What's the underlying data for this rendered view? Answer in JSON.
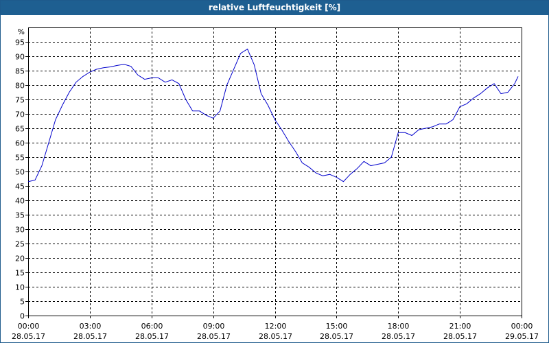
{
  "chart_data": {
    "type": "line",
    "title": "relative Luftfeuchtigkeit [%]",
    "ylabel": "%",
    "ylim": [
      0,
      100
    ],
    "yticks": [
      0,
      5,
      10,
      15,
      20,
      25,
      30,
      35,
      40,
      45,
      50,
      55,
      60,
      65,
      70,
      75,
      80,
      85,
      90,
      95
    ],
    "xlim": [
      "28.05.17 00:00",
      "29.05.17 00:00"
    ],
    "xticks": [
      {
        "time": "00:00",
        "date": "28.05.17"
      },
      {
        "time": "03:00",
        "date": "28.05.17"
      },
      {
        "time": "06:00",
        "date": "28.05.17"
      },
      {
        "time": "09:00",
        "date": "28.05.17"
      },
      {
        "time": "12:00",
        "date": "28.05.17"
      },
      {
        "time": "15:00",
        "date": "28.05.17"
      },
      {
        "time": "18:00",
        "date": "28.05.17"
      },
      {
        "time": "21:00",
        "date": "28.05.17"
      },
      {
        "time": "00:00",
        "date": "29.05.17"
      }
    ],
    "grid": true,
    "line_color": "#0000cc",
    "series": [
      {
        "x": [
          "28.05.17 00:00",
          "28.05.17 00:20",
          "28.05.17 00:40",
          "28.05.17 01:00",
          "28.05.17 01:20",
          "28.05.17 01:40",
          "28.05.17 02:00",
          "28.05.17 02:20",
          "28.05.17 02:40",
          "28.05.17 03:00",
          "28.05.17 03:20",
          "28.05.17 03:40",
          "28.05.17 04:00",
          "28.05.17 04:20",
          "28.05.17 04:40",
          "28.05.17 05:00",
          "28.05.17 05:20",
          "28.05.17 05:40",
          "28.05.17 06:00",
          "28.05.17 06:20",
          "28.05.17 06:40",
          "28.05.17 07:00",
          "28.05.17 07:20",
          "28.05.17 07:40",
          "28.05.17 08:00",
          "28.05.17 08:20",
          "28.05.17 08:40",
          "28.05.17 09:00",
          "28.05.17 09:20",
          "28.05.17 09:40",
          "28.05.17 10:00",
          "28.05.17 10:20",
          "28.05.17 10:40",
          "28.05.17 11:00",
          "28.05.17 11:20",
          "28.05.17 11:40",
          "28.05.17 12:00",
          "28.05.17 12:20",
          "28.05.17 12:40",
          "28.05.17 13:00",
          "28.05.17 13:20",
          "28.05.17 13:40",
          "28.05.17 14:00",
          "28.05.17 14:20",
          "28.05.17 14:40",
          "28.05.17 15:00",
          "28.05.17 15:20",
          "28.05.17 15:40",
          "28.05.17 16:00",
          "28.05.17 16:20",
          "28.05.17 16:40",
          "28.05.17 17:00",
          "28.05.17 17:20",
          "28.05.17 17:40",
          "28.05.17 18:00",
          "28.05.17 18:20",
          "28.05.17 18:40",
          "28.05.17 19:00",
          "28.05.17 19:20",
          "28.05.17 19:40",
          "28.05.17 20:00",
          "28.05.17 20:20",
          "28.05.17 20:40",
          "28.05.17 21:00",
          "28.05.17 21:20",
          "28.05.17 21:40",
          "28.05.17 22:00",
          "28.05.17 22:20",
          "28.05.17 22:40",
          "28.05.17 23:00",
          "28.05.17 23:20",
          "28.05.17 23:40",
          "28.05.17 23:50"
        ],
        "values": [
          46.5,
          47,
          52,
          60,
          68,
          73,
          77.5,
          81,
          83,
          84.5,
          85.5,
          86,
          86.3,
          86.8,
          87.2,
          86.5,
          83.5,
          82,
          82.5,
          82.5,
          81,
          81.8,
          80.5,
          75,
          71,
          71,
          69.5,
          68.5,
          71,
          80,
          85.5,
          91,
          92.5,
          87,
          77,
          73,
          68,
          64.5,
          60.5,
          57,
          53,
          51.5,
          49.5,
          48.5,
          49,
          48,
          46.5,
          49,
          51,
          53.5,
          52,
          52.5,
          53,
          55,
          63.5,
          63.5,
          62.5,
          64.5,
          65,
          65.5,
          66.5,
          66.5,
          68,
          72.5,
          73.5,
          75.5,
          77,
          79,
          80.5,
          77,
          77.5,
          80.5,
          83
        ]
      }
    ]
  }
}
